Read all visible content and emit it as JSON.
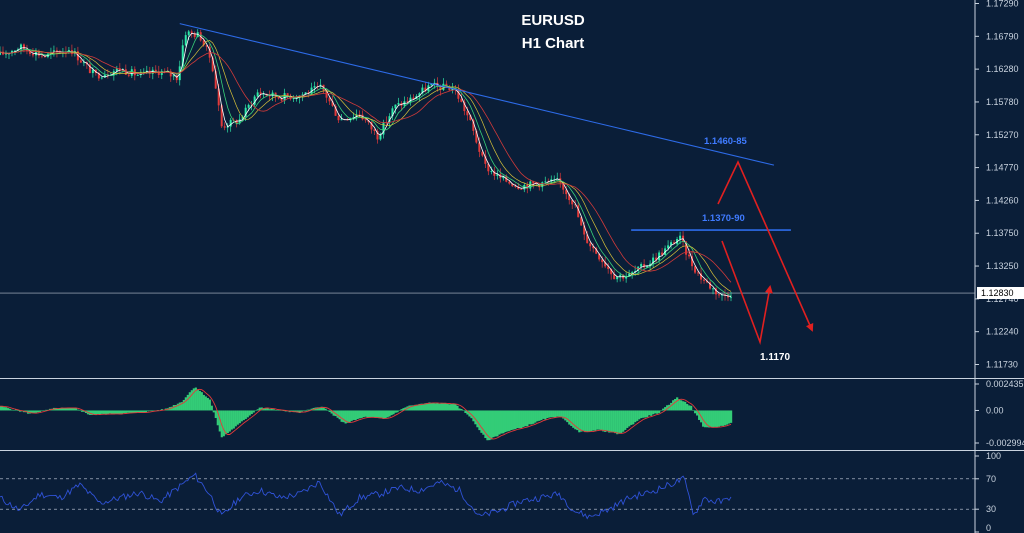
{
  "chart_data": [
    {
      "type": "candlestick",
      "panel": "price",
      "title": "EURUSD",
      "subtitle": "H1 Chart",
      "y_ticks": [
        "1.17290",
        "1.16790",
        "1.16280",
        "1.15780",
        "1.15270",
        "1.14770",
        "1.14260",
        "1.13750",
        "1.13250",
        "1.12740",
        "1.12240",
        "1.11730"
      ],
      "ylim": [
        1.1173,
        1.1729
      ],
      "current_price": "1.12830",
      "path": [
        [
          0,
          1.165
        ],
        [
          20,
          1.1662
        ],
        [
          45,
          1.1648
        ],
        [
          70,
          1.166
        ],
        [
          95,
          1.1618
        ],
        [
          120,
          1.1628
        ],
        [
          140,
          1.1618
        ],
        [
          160,
          1.1625
        ],
        [
          178,
          1.1615
        ],
        [
          185,
          1.1685
        ],
        [
          200,
          1.168
        ],
        [
          212,
          1.164
        ],
        [
          222,
          1.154
        ],
        [
          240,
          1.155
        ],
        [
          258,
          1.1592
        ],
        [
          280,
          1.1585
        ],
        [
          300,
          1.1588
        ],
        [
          322,
          1.16
        ],
        [
          340,
          1.155
        ],
        [
          360,
          1.156
        ],
        [
          378,
          1.1525
        ],
        [
          395,
          1.157
        ],
        [
          410,
          1.158
        ],
        [
          430,
          1.1602
        ],
        [
          455,
          1.1598
        ],
        [
          470,
          1.155
        ],
        [
          485,
          1.148
        ],
        [
          500,
          1.146
        ],
        [
          520,
          1.1448
        ],
        [
          540,
          1.1452
        ],
        [
          560,
          1.1455
        ],
        [
          575,
          1.142
        ],
        [
          585,
          1.137
        ],
        [
          600,
          1.134
        ],
        [
          615,
          1.131
        ],
        [
          630,
          1.131
        ],
        [
          650,
          1.133
        ],
        [
          670,
          1.1355
        ],
        [
          680,
          1.137
        ],
        [
          692,
          1.133
        ],
        [
          700,
          1.131
        ],
        [
          710,
          1.1295
        ],
        [
          722,
          1.1278
        ],
        [
          732,
          1.1283
        ]
      ],
      "trendline": [
        [
          180,
          1.1698
        ],
        [
          775,
          1.148
        ]
      ],
      "resistance": {
        "price": 1.138,
        "x_start": 632,
        "x_end": 792
      },
      "annotations": {
        "upper_zone": "1.1460-85",
        "resistance_zone": "1.1370-90",
        "target": "1.1170"
      },
      "colors": {
        "up": "#2ee8a8",
        "down": "#e23a3a",
        "trendline": "#2d6be8",
        "resistance": "#2d6be8",
        "arrows": "#e02020"
      }
    },
    {
      "type": "histogram",
      "panel": "oscillator",
      "y_ticks": [
        "0.002435",
        "0.00",
        "-0.002994"
      ],
      "ylim": [
        -0.002994,
        0.002435
      ],
      "path": [
        [
          0,
          0.0004
        ],
        [
          30,
          -0.0003
        ],
        [
          55,
          0.0002
        ],
        [
          75,
          0.0002
        ],
        [
          90,
          -0.0004
        ],
        [
          115,
          -0.0003
        ],
        [
          140,
          -0.0002
        ],
        [
          165,
          0.0001
        ],
        [
          182,
          0.0008
        ],
        [
          195,
          0.0022
        ],
        [
          210,
          0.001
        ],
        [
          222,
          -0.0025
        ],
        [
          240,
          -0.0012
        ],
        [
          260,
          0.0003
        ],
        [
          280,
          0.0
        ],
        [
          300,
          -0.0002
        ],
        [
          322,
          0.0004
        ],
        [
          345,
          -0.0012
        ],
        [
          365,
          -0.0006
        ],
        [
          385,
          -0.0008
        ],
        [
          408,
          0.0004
        ],
        [
          430,
          0.0007
        ],
        [
          455,
          0.0006
        ],
        [
          470,
          -0.0005
        ],
        [
          488,
          -0.0028
        ],
        [
          505,
          -0.002
        ],
        [
          525,
          -0.0015
        ],
        [
          545,
          -0.0008
        ],
        [
          560,
          -0.0005
        ],
        [
          580,
          -0.002
        ],
        [
          600,
          -0.0018
        ],
        [
          620,
          -0.0022
        ],
        [
          640,
          -0.0008
        ],
        [
          660,
          -0.0002
        ],
        [
          678,
          0.0012
        ],
        [
          692,
          0.0004
        ],
        [
          705,
          -0.0016
        ],
        [
          720,
          -0.0015
        ],
        [
          732,
          -0.0012
        ]
      ],
      "colors": {
        "bars": "#33cc77",
        "signal": "#e23a3a"
      }
    },
    {
      "type": "line",
      "panel": "rsi",
      "y_ticks": [
        "100",
        "70",
        "30",
        "0"
      ],
      "ylim": [
        0,
        100
      ],
      "levels": [
        70,
        30
      ],
      "path": [
        [
          0,
          45
        ],
        [
          20,
          28
        ],
        [
          40,
          50
        ],
        [
          60,
          45
        ],
        [
          80,
          62
        ],
        [
          100,
          38
        ],
        [
          120,
          45
        ],
        [
          140,
          52
        ],
        [
          160,
          40
        ],
        [
          180,
          60
        ],
        [
          195,
          75
        ],
        [
          210,
          50
        ],
        [
          222,
          20
        ],
        [
          240,
          45
        ],
        [
          260,
          55
        ],
        [
          280,
          45
        ],
        [
          300,
          50
        ],
        [
          320,
          66
        ],
        [
          340,
          22
        ],
        [
          360,
          45
        ],
        [
          380,
          50
        ],
        [
          400,
          58
        ],
        [
          420,
          55
        ],
        [
          440,
          65
        ],
        [
          460,
          55
        ],
        [
          480,
          20
        ],
        [
          500,
          28
        ],
        [
          520,
          40
        ],
        [
          540,
          45
        ],
        [
          560,
          50
        ],
        [
          575,
          28
        ],
        [
          590,
          20
        ],
        [
          610,
          30
        ],
        [
          630,
          45
        ],
        [
          650,
          52
        ],
        [
          670,
          62
        ],
        [
          685,
          70
        ],
        [
          695,
          22
        ],
        [
          705,
          45
        ],
        [
          715,
          40
        ],
        [
          725,
          40
        ],
        [
          732,
          48
        ]
      ],
      "colors": {
        "line": "#2f52d6",
        "levels": "#c9d3df"
      }
    }
  ]
}
